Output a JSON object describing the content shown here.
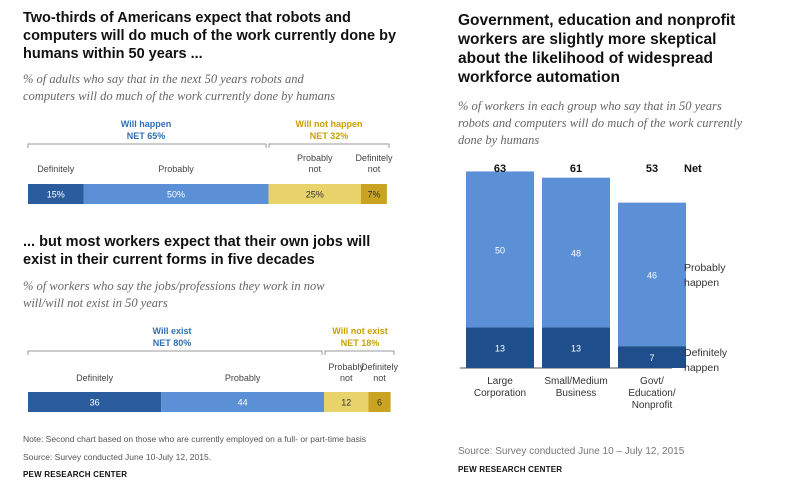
{
  "left": {
    "chart1": {
      "title_lines": [
        "Two-thirds of Americans expect that robots and",
        "computers will do much of the work currently done by",
        "humans  within 50 years ..."
      ],
      "subtitle_lines": [
        "% of adults who say that in the next 50 years robots and",
        "computers will do much of the work currently done by humans"
      ],
      "net_will": "Will happen",
      "net_will_value": "NET 65%",
      "net_wont": "Will not happen",
      "net_wont_value": "NET 32%"
    },
    "chart2": {
      "title_lines": [
        "... but most workers expect that their own jobs will",
        "exist in their current forms in five decades"
      ],
      "subtitle_lines": [
        "% of workers who say the jobs/professions they work in now",
        "will/will not exist in 50 years"
      ],
      "net_will": "Will exist",
      "net_will_value": "NET 80%",
      "net_wont": "Will not exist",
      "net_wont_value": "NET 18%"
    },
    "note": "Note: Second chart based on those who are currently employed on a full- or part-time basis",
    "source": "Source: Survey conducted June 10-July 12, 2015.",
    "brand": "PEW RESEARCH CENTER"
  },
  "right": {
    "title_lines": [
      "Government, education and nonprofit",
      "workers are slightly more skeptical",
      "about the likelihood of widespread",
      "workforce automation"
    ],
    "subtitle_lines": [
      "% of workers in each group who say that in 50 years",
      "robots and computers will do much of the work currently",
      "done by humans"
    ],
    "net_label": "Net",
    "legend_probably": [
      "Probably",
      "happen"
    ],
    "legend_definitely": [
      "Definitely",
      "happen"
    ],
    "source": "Source: Survey conducted June 10 – July 12, 2015",
    "brand": "PEW RESEARCH CENTER"
  },
  "colors": {
    "definitely": "#2b5c9e",
    "probably": "#5b8fd6",
    "probably_not": "#e8d36a",
    "definitely_not": "#c9a321",
    "bar_light": "#5b8fd6",
    "bar_dark": "#1f4e8c"
  },
  "chart_data": [
    {
      "type": "bar",
      "orientation": "horizontal-stacked",
      "title": "Two-thirds of Americans expect that robots and computers will do much of the work currently done by humans within 50 years ...",
      "categories": [
        "Definitely",
        "Probably",
        "Probably not",
        "Definitely not"
      ],
      "category_lines": [
        [
          "Definitely"
        ],
        [
          "Probably"
        ],
        [
          "Probably",
          "not"
        ],
        [
          "Definitely",
          "not"
        ]
      ],
      "values": [
        15,
        50,
        25,
        7
      ],
      "labels": [
        "15%",
        "50%",
        "25%",
        "7%"
      ],
      "net": {
        "will": 65,
        "will_not": 32
      }
    },
    {
      "type": "bar",
      "orientation": "horizontal-stacked",
      "title": "... but most workers expect that their own jobs will exist in their current forms in five decades",
      "categories": [
        "Definitely",
        "Probably",
        "Probably not",
        "Definitely not"
      ],
      "category_lines": [
        [
          "Definitely"
        ],
        [
          "Probably"
        ],
        [
          "Probably",
          "not"
        ],
        [
          "Definitely",
          "not"
        ]
      ],
      "values": [
        36,
        44,
        12,
        6
      ],
      "labels": [
        "36",
        "44",
        "12",
        "6"
      ],
      "net": {
        "will": 80,
        "will_not": 18
      }
    },
    {
      "type": "bar",
      "orientation": "vertical-stacked",
      "title": "Government, education and nonprofit workers are slightly more skeptical about the likelihood of widespread workforce automation",
      "categories": [
        "Large Corporation",
        "Small/Medium Business",
        "Govt/ Education/ Nonprofit"
      ],
      "category_lines": [
        [
          "Large",
          "Corporation"
        ],
        [
          "Small/Medium",
          "Business"
        ],
        [
          "Govt/",
          "Education/",
          "Nonprofit"
        ]
      ],
      "series": [
        {
          "name": "Definitely happen",
          "values": [
            13,
            13,
            7
          ]
        },
        {
          "name": "Probably happen",
          "values": [
            50,
            48,
            46
          ]
        }
      ],
      "net": [
        63,
        61,
        53
      ]
    }
  ]
}
